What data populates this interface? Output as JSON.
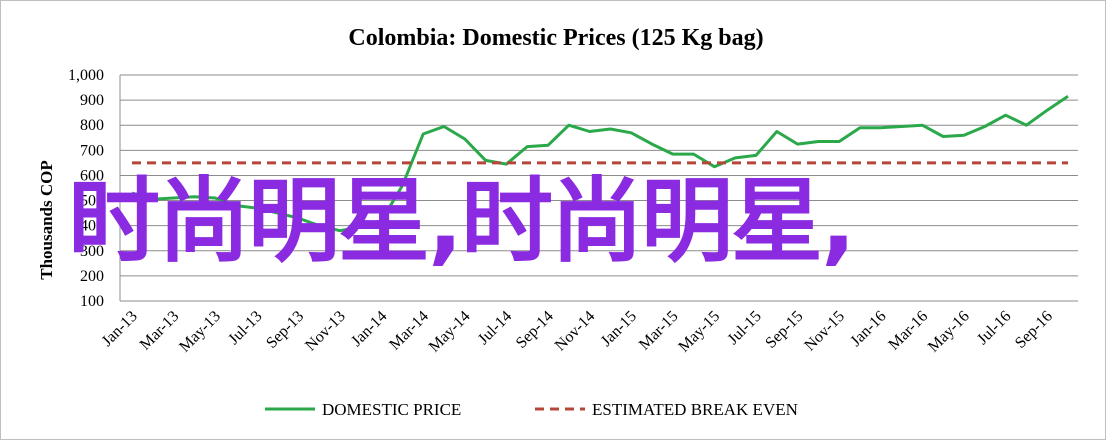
{
  "chart_data": {
    "type": "line",
    "title": "Colombia:  Domestic Prices (125 Kg bag)",
    "ylabel": "Thousands COP",
    "xlabel": "",
    "ylim": [
      100,
      1000
    ],
    "yticks": [
      100,
      200,
      300,
      400,
      500,
      600,
      700,
      800,
      900,
      1000
    ],
    "ytick_labels": [
      "100",
      "200",
      "300",
      "400",
      "500",
      "600",
      "700",
      "800",
      "900",
      "1,000"
    ],
    "xtick_labels": [
      "Jan-13",
      "Mar-13",
      "May-13",
      "Jul-13",
      "Sep-13",
      "Nov-13",
      "Jan-14",
      "Mar-14",
      "May-14",
      "Jul-14",
      "Sep-14",
      "Nov-14",
      "Jan-15",
      "Mar-15",
      "May-15",
      "Jul-15",
      "Sep-15",
      "Nov-15",
      "Jan-16",
      "Mar-16",
      "May-16",
      "Jul-16",
      "Sep-16"
    ],
    "grid": true,
    "legend_position": "bottom",
    "series": [
      {
        "name": "DOMESTIC PRICE",
        "color": "#2aa84a",
        "style": "solid",
        "values": [
          530,
          505,
          510,
          515,
          510,
          480,
          470,
          450,
          430,
          400,
          380,
          395,
          420,
          560,
          765,
          795,
          745,
          660,
          645,
          715,
          720,
          800,
          775,
          785,
          770,
          725,
          685,
          685,
          635,
          670,
          680,
          775,
          725,
          735,
          735,
          790,
          790,
          795,
          800,
          755,
          760,
          795,
          840,
          800,
          860,
          915
        ]
      },
      {
        "name": "ESTIMATED BREAK EVEN",
        "color": "#b5473a",
        "style": "dashed",
        "values": [
          650,
          650,
          650,
          650,
          650,
          650,
          650,
          650,
          650,
          650,
          650,
          650,
          650,
          650,
          650,
          650,
          650,
          650,
          650,
          650,
          650,
          650,
          650,
          650,
          650,
          650,
          650,
          650,
          650,
          650,
          650,
          650,
          650,
          650,
          650,
          650,
          650,
          650,
          650,
          650,
          650,
          650,
          650,
          650,
          650,
          650
        ]
      }
    ]
  },
  "overlay": {
    "watermark_text": "时尚明星,时尚明星,",
    "watermark_color": "#8a2be2"
  }
}
